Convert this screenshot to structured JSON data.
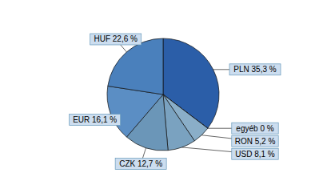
{
  "chart_data": {
    "type": "pie",
    "categories": [
      "PLN 35,3 %",
      "egyéb 0 %",
      "RON 5,2 %",
      "USD 8,1 %",
      "CZK 12,7 %",
      "EUR 16,1 %",
      "HUF 22,6 %"
    ],
    "values": [
      35.3,
      0.001,
      5.2,
      8.1,
      12.7,
      16.1,
      22.6
    ],
    "colors": [
      "#2B5EA8",
      "#B8D0E8",
      "#8AAEC8",
      "#7AA2C0",
      "#6B96B8",
      "#5B8EC4",
      "#4A80BC"
    ]
  }
}
